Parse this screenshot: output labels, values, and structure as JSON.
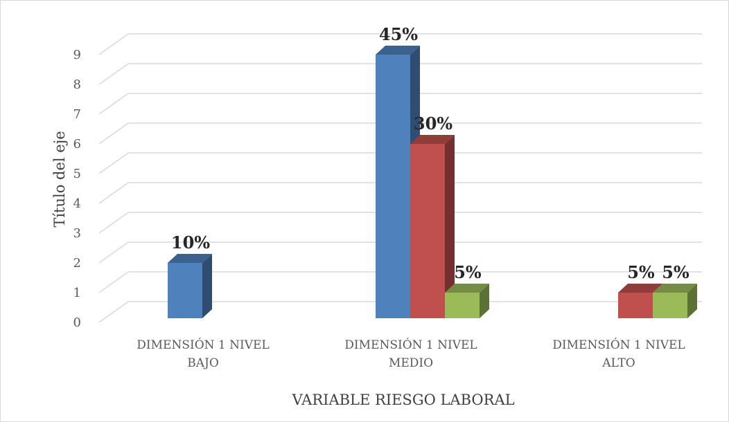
{
  "chart_data": {
    "type": "bar",
    "title": "",
    "xlabel": "VARIABLE RIESGO LABORAL",
    "ylabel": "Título del eje",
    "ylim": [
      0,
      9
    ],
    "yticks": [
      "0",
      "1",
      "2",
      "3",
      "4",
      "5",
      "6",
      "7",
      "8",
      "9"
    ],
    "grid": true,
    "legend": "none",
    "style": "3d-clustered-column",
    "categories": [
      [
        "DIMENSIÓN 1 NIVEL",
        "BAJO"
      ],
      [
        "DIMENSIÓN 1  NIVEL",
        "MEDIO"
      ],
      [
        "DIMENSIÓN 1 NIVEL",
        "ALTO"
      ]
    ],
    "series": [
      {
        "color": "#4f81bd",
        "values": [
          2,
          9,
          0
        ],
        "labels": [
          "10%",
          "45%",
          ""
        ]
      },
      {
        "color": "#c0504d",
        "values": [
          0,
          6,
          1
        ],
        "labels": [
          "",
          "30%",
          "5%"
        ]
      },
      {
        "color": "#9bbb59",
        "values": [
          0,
          1,
          1
        ],
        "labels": [
          "",
          "5%",
          "5%"
        ]
      }
    ]
  }
}
